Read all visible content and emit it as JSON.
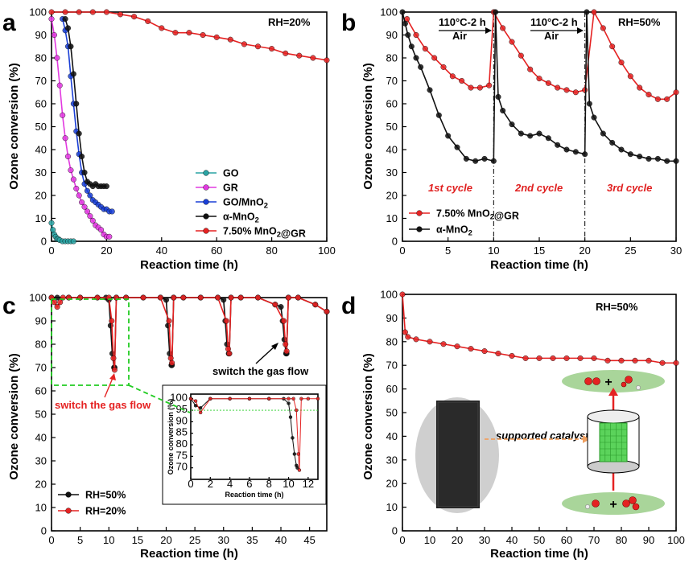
{
  "colors": {
    "red": "#e52222",
    "black": "#111111",
    "blue": "#1a3fd6",
    "magenta": "#e23ae0",
    "teal": "#2aa3a3",
    "green": "#22cc22",
    "light_green": "#a9d59a"
  },
  "chart_data": [
    {
      "panel": "a",
      "type": "line",
      "xlabel": "Reaction time (h)",
      "ylabel": "Ozone conversion (%)",
      "xlim": [
        0,
        100
      ],
      "ylim": [
        0,
        100
      ],
      "xticks": [
        "0",
        "20",
        "40",
        "60",
        "80",
        "100"
      ],
      "yticks": [
        "0",
        "10",
        "20",
        "30",
        "40",
        "50",
        "60",
        "70",
        "80",
        "90",
        "100"
      ],
      "annotation": "RH=20%",
      "legend_position": "bottom-right",
      "series": [
        {
          "name": "GO",
          "color": "#2aa3a3",
          "x": [
            0,
            0.5,
            1,
            1.5,
            2,
            2.5,
            3,
            4,
            5,
            6,
            7,
            8
          ],
          "y": [
            8,
            5,
            3,
            2,
            1,
            1,
            0.5,
            0,
            0,
            0,
            0,
            0
          ]
        },
        {
          "name": "GR",
          "color": "#e23ae0",
          "x": [
            0,
            1,
            2,
            3,
            4,
            5,
            6,
            7,
            8,
            9,
            10,
            11,
            12,
            13,
            14,
            15,
            16,
            17,
            18,
            19,
            20,
            21
          ],
          "y": [
            97,
            90,
            80,
            68,
            55,
            45,
            37,
            31,
            27,
            23,
            20,
            17,
            15,
            13,
            11,
            9,
            7,
            6,
            5,
            3,
            2,
            2
          ]
        },
        {
          "name": "GO/MnO2",
          "color": "#1a3fd6",
          "x": [
            4,
            5,
            6,
            7,
            8,
            9,
            10,
            11,
            12,
            13,
            14,
            15,
            16,
            17,
            18,
            19,
            20,
            21,
            22
          ],
          "y": [
            97,
            92,
            85,
            72,
            60,
            48,
            38,
            30,
            25,
            22,
            20,
            18,
            17,
            16,
            15,
            14,
            14,
            13,
            13
          ]
        },
        {
          "name": "α-MnO2",
          "color": "#111111",
          "x": [
            5,
            6,
            7,
            8,
            9,
            10,
            11,
            12,
            13,
            14,
            15,
            16,
            17,
            18,
            19,
            20
          ],
          "y": [
            97,
            93,
            85,
            73,
            60,
            47,
            37,
            30,
            26,
            25,
            24,
            25,
            24,
            24,
            24,
            24
          ]
        },
        {
          "name": "7.50% MnO2@GR",
          "color": "#e52222",
          "x": [
            0,
            5,
            10,
            15,
            20,
            25,
            30,
            35,
            40,
            45,
            50,
            55,
            60,
            65,
            70,
            75,
            80,
            85,
            90,
            95,
            100
          ],
          "y": [
            100,
            100,
            100,
            100,
            100,
            99,
            98,
            96,
            93,
            91,
            91,
            90,
            89,
            88,
            86,
            85,
            84,
            82,
            81,
            80,
            79
          ]
        }
      ]
    },
    {
      "panel": "b",
      "type": "line",
      "xlabel": "Reaction time (h)",
      "ylabel": "Ozone conversion (%)",
      "xlim": [
        0,
        30
      ],
      "ylim": [
        0,
        100
      ],
      "xticks": [
        "0",
        "5",
        "10",
        "15",
        "20",
        "25",
        "30"
      ],
      "yticks": [
        "0",
        "10",
        "20",
        "30",
        "40",
        "50",
        "60",
        "70",
        "80",
        "90",
        "100"
      ],
      "annotation": "RH=50%",
      "regen_label_1": "110°C-2 h",
      "regen_gas_1": "Air",
      "regen_label_2": "110°C-2 h",
      "regen_gas_2": "Air",
      "cycles": [
        "1st cycle",
        "2nd cycle",
        "3rd cycle"
      ],
      "legend_position": "bottom-left",
      "series": [
        {
          "name": "7.50% MnO2@GR",
          "color": "#e52222",
          "x": [
            0.5,
            1.5,
            2.5,
            3.5,
            4.5,
            5.5,
            6.5,
            7.5,
            8.5,
            9.5,
            10,
            11,
            12,
            13,
            14,
            15,
            16,
            17,
            18,
            19,
            20,
            21,
            22,
            23,
            24,
            25,
            26,
            27,
            28,
            29,
            30
          ],
          "y": [
            97,
            90,
            84,
            80,
            76,
            72,
            70,
            67,
            67,
            68,
            100,
            93,
            87,
            81,
            75,
            71,
            69,
            67,
            66,
            65,
            66,
            100,
            93,
            85,
            78,
            72,
            67,
            64,
            62,
            62,
            65
          ]
        },
        {
          "name": "α-MnO2",
          "color": "#111111",
          "x": [
            0,
            0.3,
            0.6,
            1,
            1.5,
            2,
            3,
            4,
            5,
            6,
            7,
            8,
            9,
            10,
            10.2,
            10.5,
            11,
            12,
            13,
            14,
            15,
            16,
            17,
            18,
            19,
            20,
            20.2,
            20.5,
            21,
            22,
            23,
            24,
            25,
            26,
            27,
            28,
            29,
            30
          ],
          "y": [
            100,
            95,
            90,
            85,
            80,
            76,
            66,
            55,
            46,
            41,
            36,
            35,
            36,
            35,
            100,
            63,
            57,
            51,
            47,
            46,
            47,
            45,
            42,
            40,
            39,
            38,
            100,
            60,
            54,
            47,
            43,
            40,
            38,
            37,
            36,
            36,
            35,
            35
          ]
        }
      ]
    },
    {
      "panel": "c",
      "type": "line",
      "xlabel": "Reaction time (h)",
      "ylabel": "Ozone conversion (%)",
      "xlim": [
        0,
        48
      ],
      "ylim": [
        0,
        100
      ],
      "xticks": [
        "0",
        "5",
        "10",
        "15",
        "20",
        "25",
        "30",
        "35",
        "40",
        "45"
      ],
      "yticks": [
        "0",
        "10",
        "20",
        "30",
        "40",
        "50",
        "60",
        "70",
        "80",
        "90",
        "100"
      ],
      "annotation_1": "switch the gas flow",
      "annotation_2": "switch the gas flow",
      "legend_position": "bottom-left",
      "series": [
        {
          "name": "RH=50%",
          "color": "#111111",
          "x": [
            0,
            1,
            3,
            5,
            8,
            9.5,
            10,
            10.3,
            10.6,
            10.9,
            11,
            11.3,
            13,
            16,
            19,
            20,
            20.3,
            20.6,
            20.9,
            21,
            21.3,
            23,
            26,
            29,
            30,
            30.3,
            30.6,
            30.9,
            31,
            31.3,
            33,
            36,
            39,
            40,
            40.3,
            40.6,
            40.9,
            41,
            41.3,
            43,
            46,
            48
          ],
          "y": [
            100,
            100,
            100,
            100,
            100,
            100,
            99,
            88,
            76,
            70,
            70,
            100,
            100,
            100,
            100,
            99,
            88,
            76,
            71,
            71,
            100,
            100,
            100,
            100,
            99,
            90,
            80,
            76,
            76,
            100,
            100,
            100,
            97,
            96,
            90,
            82,
            76,
            76,
            100,
            100,
            97,
            94
          ]
        },
        {
          "name": "RH=20%",
          "color": "#e52222",
          "x": [
            0,
            0.5,
            1,
            1.5,
            2,
            3,
            5,
            8,
            10,
            10.5,
            10.8,
            11,
            11.3,
            13,
            16,
            19,
            20.5,
            20.8,
            21,
            21.3,
            23,
            26,
            29,
            30.5,
            30.8,
            31,
            31.3,
            33,
            36,
            39,
            40.5,
            40.8,
            41,
            41.3,
            43,
            46,
            48
          ],
          "y": [
            100,
            98,
            96,
            98,
            100,
            100,
            100,
            100,
            100,
            90,
            74,
            69,
            100,
            100,
            100,
            100,
            90,
            74,
            72,
            100,
            100,
            100,
            100,
            90,
            78,
            76,
            100,
            100,
            100,
            97,
            90,
            80,
            77,
            100,
            100,
            97,
            94
          ]
        }
      ]
    },
    {
      "panel": "c-inset",
      "type": "line",
      "xlabel": "Reaction time (h)",
      "ylabel": "Ozone conversion (%)",
      "xlim": [
        0,
        13
      ],
      "ylim": [
        65,
        102
      ],
      "xticks": [
        "0",
        "2",
        "4",
        "6",
        "8",
        "10",
        "12"
      ],
      "yticks": [
        "70",
        "75",
        "80",
        "85",
        "90",
        "95",
        "100"
      ],
      "series": [
        {
          "name": "RH=50%",
          "color": "#111111",
          "x": [
            0,
            0.5,
            1,
            2,
            4,
            6,
            8,
            9.5,
            10,
            10.2,
            10.4,
            10.6,
            10.8,
            10.9
          ],
          "y": [
            100,
            97,
            96,
            100,
            100,
            100,
            100,
            100,
            98,
            92,
            83,
            76,
            71,
            70
          ]
        },
        {
          "name": "RH=20%",
          "color": "#e52222",
          "x": [
            0,
            0.5,
            1,
            2,
            4,
            6,
            8,
            10,
            10.5,
            10.8,
            11,
            11.1,
            11.3,
            12,
            13
          ],
          "y": [
            100,
            99,
            94,
            100,
            100,
            100,
            100,
            100,
            100,
            95,
            76,
            69,
            100,
            100,
            100
          ]
        }
      ]
    },
    {
      "panel": "d",
      "type": "line",
      "xlabel": "Reaction time (h)",
      "ylabel": "Ozone conversion (%)",
      "xlim": [
        0,
        100
      ],
      "ylim": [
        0,
        100
      ],
      "xticks": [
        "0",
        "10",
        "20",
        "30",
        "40",
        "50",
        "60",
        "70",
        "80",
        "90",
        "100"
      ],
      "yticks": [
        "0",
        "10",
        "20",
        "30",
        "40",
        "50",
        "60",
        "70",
        "80",
        "90",
        "100"
      ],
      "annotation": "RH=50%",
      "inset_label": "supported catalyst",
      "series": [
        {
          "name": "7.50% MnO2@GR",
          "color": "#e52222",
          "x": [
            0,
            1,
            2,
            5,
            10,
            15,
            20,
            25,
            30,
            35,
            40,
            45,
            50,
            55,
            60,
            65,
            70,
            75,
            80,
            85,
            90,
            95,
            100
          ],
          "y": [
            100,
            84,
            82,
            81,
            80,
            79,
            78,
            77,
            76,
            75,
            74,
            73,
            73,
            73,
            73,
            73,
            73,
            72,
            72,
            72,
            72,
            71,
            71
          ]
        }
      ]
    }
  ],
  "panels": {
    "a": {
      "label": "a"
    },
    "b": {
      "label": "b"
    },
    "c": {
      "label": "c"
    },
    "d": {
      "label": "d"
    }
  },
  "legends": {
    "a": [
      "GO",
      "GR",
      "GO/MnO2",
      "α-MnO2",
      "7.50% MnO2@GR"
    ],
    "b": [
      "7.50% MnO2@GR",
      "α-MnO2"
    ],
    "c": [
      "RH=50%",
      "RH=20%"
    ]
  }
}
